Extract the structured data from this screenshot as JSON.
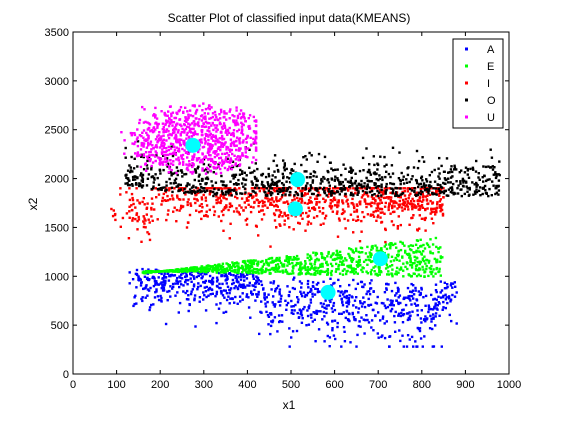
{
  "chart_data": {
    "type": "scatter",
    "title": "Scatter Plot of classified input data(KMEANS)",
    "xlabel": "x1",
    "ylabel": "x2",
    "xlim": [
      0,
      1000
    ],
    "ylim": [
      0,
      3500
    ],
    "xticks": [
      0,
      100,
      200,
      300,
      400,
      500,
      600,
      700,
      800,
      900,
      1000
    ],
    "yticks": [
      0,
      500,
      1000,
      1500,
      2000,
      2500,
      3000,
      3500
    ],
    "grid": false,
    "legend_position": "top-right",
    "series": [
      {
        "name": "A",
        "color": "#0000ff",
        "cluster": {
          "center": [
            585,
            835
          ],
          "range_x": [
            130,
            880
          ],
          "range_y": [
            280,
            1120
          ]
        }
      },
      {
        "name": "E",
        "color": "#00ff00",
        "cluster": {
          "center": [
            705,
            1180
          ],
          "range_x": [
            150,
            850
          ],
          "range_y": [
            850,
            1550
          ]
        }
      },
      {
        "name": "I",
        "color": "#ff0000",
        "cluster": {
          "center": [
            510,
            1690
          ],
          "range_x": [
            75,
            850
          ],
          "range_y": [
            1250,
            1950
          ]
        }
      },
      {
        "name": "O",
        "color": "#000000",
        "cluster": {
          "center": [
            515,
            1990
          ],
          "range_x": [
            110,
            980
          ],
          "range_y": [
            1800,
            2450
          ]
        }
      },
      {
        "name": "U",
        "color": "#ff00ff",
        "cluster": {
          "center": [
            275,
            2340
          ],
          "range_x": [
            100,
            420
          ],
          "range_y": [
            2000,
            3080
          ]
        }
      }
    ],
    "centroid_color": "#00ffff"
  }
}
